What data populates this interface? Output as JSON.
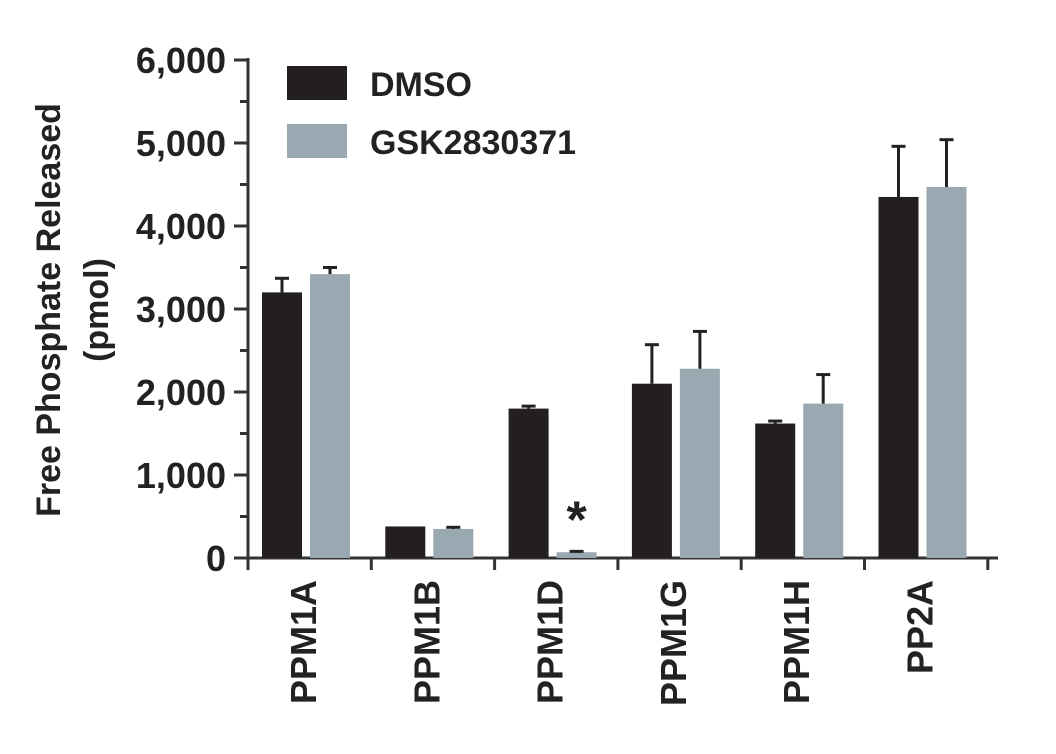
{
  "chart_data": {
    "type": "bar",
    "categories": [
      "PPM1A",
      "PPM1B",
      "PPM1D",
      "PPM1G",
      "PPM1H",
      "PP2A"
    ],
    "series": [
      {
        "name": "DMSO",
        "color": "#231f20",
        "values": [
          3200,
          380,
          1800,
          2100,
          1620,
          4350
        ],
        "errors": [
          170,
          0,
          30,
          470,
          30,
          610
        ]
      },
      {
        "name": "GSK2830371",
        "color": "#9aa8b2",
        "values": [
          3420,
          350,
          70,
          2280,
          1860,
          4470
        ],
        "errors": [
          80,
          20,
          10,
          450,
          350,
          570
        ]
      }
    ],
    "ylabel_lines": [
      "Free Phosphate Released",
      "(pmol)"
    ],
    "ylim": [
      0,
      6000
    ],
    "yticks": [
      "0",
      "1,000",
      "2,000",
      "3,000",
      "4,000",
      "5,000",
      "6,000"
    ],
    "yticks_values": [
      0,
      1000,
      2000,
      3000,
      4000,
      5000,
      6000
    ],
    "minor_tick_step": 500,
    "annotations": [
      {
        "category": "PPM1D",
        "text": "*"
      }
    ],
    "legend": "top-left",
    "grid": false
  }
}
